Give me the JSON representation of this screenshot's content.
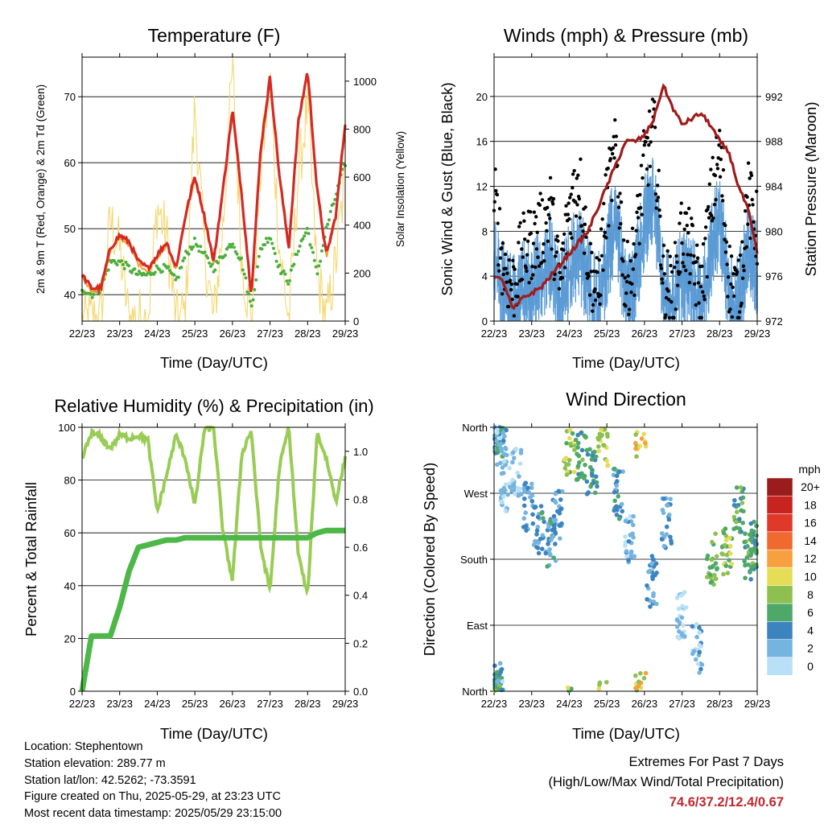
{
  "colors": {
    "temp_red": "#d42a24",
    "temp_orange": "#f0a030",
    "dewpoint_green": "#4caf3c",
    "insolation_yellow": "#f5d76e",
    "gust_black": "#000000",
    "wind_blue": "#5b9bd5",
    "pressure_maroon": "#a01c1c",
    "rh_lightgreen": "#99cc55",
    "precip_green": "#4db848"
  },
  "panels": {
    "temperature": {
      "title": "Temperature (F)",
      "ylabel_left": "2m & 9m T (Red, Orange) & 2m Td (Green)",
      "ylabel_right": "Solar Insolation (Yellow)",
      "xlabel": "Time (Day/UTC)"
    },
    "winds": {
      "title": "Winds (mph) & Pressure (mb)",
      "ylabel_left": "Sonic Wind & Gust (Blue, Black)",
      "ylabel_right": "Station Pressure (Maroon)",
      "xlabel": "Time (Day/UTC)"
    },
    "humidity": {
      "title": "Relative Humidity (%) & Precipitation (in)",
      "ylabel_left": "Percent & Total Rainfall",
      "xlabel": "Time (Day/UTC)"
    },
    "direction": {
      "title": "Wind Direction",
      "ylabel_left": "Direction (Colored By Speed)",
      "xlabel": "Time (Day/UTC)",
      "legend_title": "mph",
      "legend_labels": [
        "20+",
        "18",
        "16",
        "14",
        "12",
        "10",
        "8",
        "6",
        "4",
        "2",
        "0"
      ],
      "legend_colors": [
        "#9b1c1c",
        "#c8241f",
        "#e0392a",
        "#f06a30",
        "#f7a040",
        "#e6dc55",
        "#8dc050",
        "#4ea868",
        "#3c84c0",
        "#76b4e0",
        "#b8e0f6"
      ]
    }
  },
  "chart_data": [
    {
      "type": "line",
      "title": "Temperature (F)",
      "xlabel": "Time (Day/UTC)",
      "ylabel": "2m & 9m T (Red, Orange) & 2m Td (Green)",
      "y2label": "Solar Insolation (Yellow)",
      "x_ticks": [
        "22/23",
        "23/23",
        "24/23",
        "25/23",
        "26/23",
        "27/23",
        "28/23",
        "29/23"
      ],
      "y_ticks": [
        40,
        50,
        60,
        70
      ],
      "y2_ticks": [
        0,
        200,
        400,
        600,
        800,
        1000
      ],
      "ylim": [
        36,
        76
      ],
      "y2lim": [
        0,
        1100
      ],
      "x": [
        0,
        0.25,
        0.5,
        0.75,
        1,
        1.25,
        1.5,
        1.75,
        2,
        2.25,
        2.5,
        2.75,
        3,
        3.25,
        3.5,
        3.75,
        4,
        4.25,
        4.5,
        4.75,
        5,
        5.25,
        5.5,
        5.75,
        6,
        6.25,
        6.5,
        6.75,
        7
      ],
      "series": [
        {
          "name": "2m T",
          "values": [
            43,
            41,
            41,
            47,
            49,
            48,
            45,
            44,
            46,
            48,
            44,
            52,
            58,
            52,
            45,
            56,
            68,
            55,
            40,
            62,
            73,
            58,
            47,
            66,
            74,
            56,
            46,
            52,
            66
          ]
        },
        {
          "name": "2m Td",
          "values": [
            41,
            40,
            41,
            45,
            45,
            44,
            43,
            43,
            44,
            44,
            42,
            46,
            48,
            46,
            44,
            46,
            48,
            45,
            38,
            47,
            49,
            44,
            42,
            47,
            50,
            43,
            50,
            55,
            60
          ]
        },
        {
          "name": "Solar Insolation",
          "axis": "right",
          "values": [
            0,
            10,
            10,
            420,
            300,
            0,
            20,
            0,
            480,
            350,
            0,
            40,
            900,
            300,
            0,
            400,
            1050,
            250,
            0,
            640,
            1000,
            300,
            0,
            600,
            900,
            200,
            0,
            250,
            600
          ]
        }
      ]
    },
    {
      "type": "line",
      "title": "Winds (mph) & Pressure (mb)",
      "xlabel": "Time (Day/UTC)",
      "ylabel": "Sonic Wind & Gust (Blue, Black)",
      "y2label": "Station Pressure (Maroon)",
      "x_ticks": [
        "22/23",
        "23/23",
        "24/23",
        "25/23",
        "26/23",
        "27/23",
        "28/23",
        "29/23"
      ],
      "y_ticks": [
        0,
        4,
        8,
        12,
        16,
        20
      ],
      "y2_ticks": [
        972,
        976,
        980,
        984,
        988,
        992
      ],
      "ylim": [
        0,
        23.5
      ],
      "y2lim": [
        972,
        995.5
      ],
      "x": [
        0,
        0.25,
        0.5,
        0.75,
        1,
        1.25,
        1.5,
        1.75,
        2,
        2.25,
        2.5,
        2.75,
        3,
        3.25,
        3.5,
        3.75,
        4,
        4.25,
        4.5,
        4.75,
        5,
        5.25,
        5.5,
        5.75,
        6,
        6.25,
        6.5,
        6.75,
        7
      ],
      "series": [
        {
          "name": "Sonic Wind",
          "values": [
            6,
            2,
            1,
            3,
            2,
            4,
            5,
            1,
            4,
            6,
            3,
            1,
            5,
            9,
            1,
            3,
            8,
            11,
            2,
            1,
            4,
            3,
            1,
            5,
            9,
            2,
            1,
            6,
            4
          ]
        },
        {
          "name": "Gust",
          "values": [
            11,
            5,
            3,
            6,
            7,
            8,
            10,
            3,
            10,
            13,
            6,
            2,
            11,
            15,
            3,
            6,
            14,
            17,
            4,
            2,
            8,
            6,
            2,
            10,
            15,
            4,
            2,
            11,
            8
          ]
        },
        {
          "name": "Station Pressure",
          "axis": "right",
          "values": [
            976,
            975.5,
            973,
            974,
            974.5,
            975,
            976,
            977,
            978,
            979,
            980,
            982,
            984,
            986,
            988,
            988,
            988.5,
            990,
            993,
            991,
            989.5,
            990,
            990.5,
            989.5,
            988,
            987,
            984,
            982,
            978
          ]
        }
      ]
    },
    {
      "type": "line",
      "title": "Relative Humidity (%) & Precipitation (in)",
      "xlabel": "Time (Day/UTC)",
      "ylabel": "Percent & Total Rainfall",
      "x_ticks": [
        "22/23",
        "23/23",
        "24/23",
        "25/23",
        "26/23",
        "27/23",
        "28/23",
        "29/23"
      ],
      "y_ticks": [
        0,
        20,
        40,
        60,
        80,
        100
      ],
      "y2_ticks": [
        0.0,
        0.2,
        0.4,
        0.6,
        0.8,
        1.0
      ],
      "ylim": [
        0,
        100
      ],
      "y2lim": [
        0,
        1.1
      ],
      "x": [
        0,
        0.25,
        0.5,
        0.75,
        1,
        1.25,
        1.5,
        1.75,
        2,
        2.25,
        2.5,
        2.75,
        3,
        3.25,
        3.5,
        3.75,
        4,
        4.25,
        4.5,
        4.75,
        5,
        5.25,
        5.5,
        5.75,
        6,
        6.25,
        6.5,
        6.75,
        7
      ],
      "series": [
        {
          "name": "Relative Humidity",
          "values": [
            88,
            98,
            96,
            92,
            97,
            96,
            97,
            95,
            68,
            82,
            97,
            88,
            70,
            99,
            100,
            60,
            42,
            90,
            99,
            55,
            38,
            85,
            100,
            52,
            36,
            98,
            88,
            72,
            88
          ]
        },
        {
          "name": "Total Precipitation",
          "axis": "right",
          "values": [
            0,
            0.23,
            0.23,
            0.23,
            0.35,
            0.5,
            0.6,
            0.61,
            0.62,
            0.63,
            0.63,
            0.64,
            0.64,
            0.64,
            0.64,
            0.64,
            0.64,
            0.64,
            0.64,
            0.64,
            0.64,
            0.64,
            0.64,
            0.64,
            0.64,
            0.66,
            0.67,
            0.67,
            0.67
          ]
        }
      ]
    },
    {
      "type": "scatter",
      "title": "Wind Direction",
      "xlabel": "Time (Day/UTC)",
      "ylabel": "Direction (Colored By Speed)",
      "x_ticks": [
        "22/23",
        "23/23",
        "24/23",
        "25/23",
        "26/23",
        "27/23",
        "28/23",
        "29/23"
      ],
      "y_ticks": [
        "North",
        "East",
        "South",
        "West",
        "North"
      ],
      "ylim": [
        0,
        360
      ],
      "colorbar": {
        "label": "mph",
        "levels": [
          "20+",
          "18",
          "16",
          "14",
          "12",
          "10",
          "8",
          "6",
          "4",
          "2",
          "0"
        ]
      },
      "series": [
        {
          "name": "Direction",
          "x": [
            0.05,
            0.1,
            0.2,
            0.3,
            0.6,
            0.9,
            1.2,
            1.5,
            1.7,
            2.0,
            2.3,
            2.6,
            2.9,
            3.3,
            3.6,
            3.9,
            4.2,
            4.6,
            5.0,
            5.4,
            5.8,
            6.2,
            6.5,
            6.8,
            6.95
          ],
          "y": [
            5,
            355,
            340,
            280,
            300,
            250,
            220,
            200,
            240,
            330,
            320,
            300,
            340,
            270,
            210,
            355,
            150,
            230,
            100,
            60,
            180,
            190,
            250,
            180,
            200
          ],
          "speed": [
            3,
            6,
            2,
            1,
            1,
            3,
            4,
            4,
            3,
            8,
            6,
            5,
            9,
            4,
            2,
            10,
            3,
            3,
            1,
            2,
            7,
            8,
            6,
            6,
            5
          ]
        }
      ]
    }
  ],
  "info": {
    "location": "Location: Stephentown",
    "elevation": "Station elevation: 289.77 m",
    "latlon": "Station lat/lon: 42.5262; -73.3591",
    "created": "Figure created on Thu, 2025-05-29, at 23:23 UTC",
    "recent": "Most recent data timestamp: 2025/05/29 23:15:00"
  },
  "extremes": {
    "title": "Extremes For Past 7 Days",
    "subtitle": "(High/Low/Max Wind/Total Precipitation)",
    "values": "74.6/37.2/12.4/0.67"
  }
}
